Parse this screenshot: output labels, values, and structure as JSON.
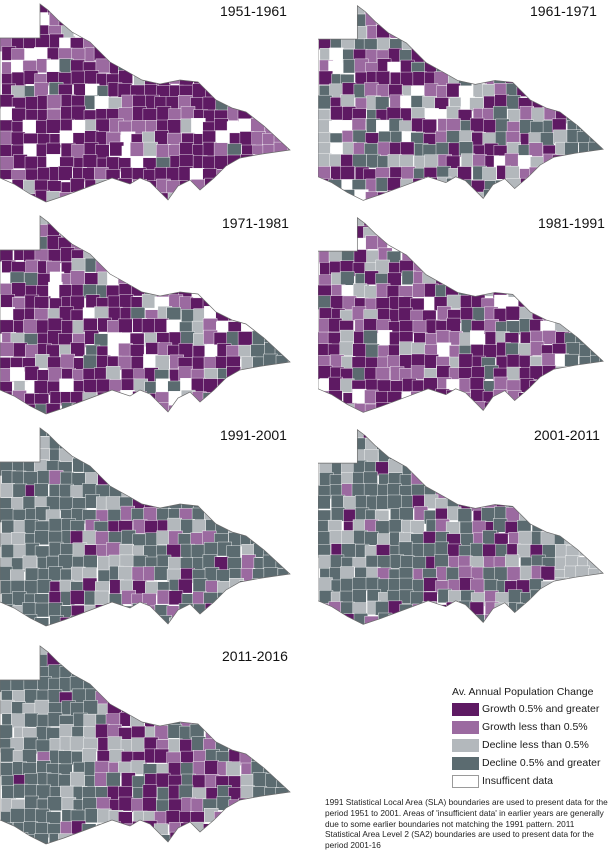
{
  "periods": [
    "1951-1961",
    "1961-1971",
    "1971-1981",
    "1981-1991",
    "1991-2001",
    "2001-2011",
    "2011-2016"
  ],
  "legend": {
    "title": "Av. Annual Population Change",
    "items": [
      {
        "label": "Growth 0.5% and greater",
        "color": "#5e1a63"
      },
      {
        "label": "Growth less than 0.5%",
        "color": "#9b6aa0"
      },
      {
        "label": "Decline less than 0.5%",
        "color": "#b3b8bc"
      },
      {
        "label": "Decline 0.5% and greater",
        "color": "#5b6b70"
      },
      {
        "label": "Insufficent data",
        "color": "#ffffff"
      }
    ]
  },
  "note": "1991 Statistical Local Area (SLA) boundaries are used to present data for the period 1951 to 2001. Areas of 'insufficient data' in earlier years are generally due to some earlier boundaries not matching the 1991 pattern. 2011 Statistical Area Level 2 (SA2) boundaries are used to present data for the period 2001-16"
}
